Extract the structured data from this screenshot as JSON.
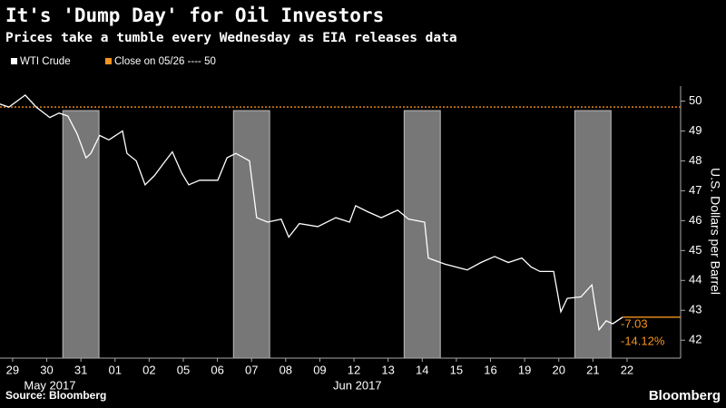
{
  "chart_data": {
    "type": "line",
    "title": "It's 'Dump Day' for Oil Investors",
    "subtitle": "Prices take a tumble every Wednesday as EIA releases data",
    "x": [
      -0.37,
      -0.11,
      0.37,
      0.69,
      1.09,
      1.36,
      1.62,
      1.89,
      2.15,
      2.29,
      2.55,
      2.82,
      3.22,
      3.35,
      3.62,
      3.88,
      4.15,
      4.41,
      4.68,
      4.95,
      5.16,
      5.48,
      6.01,
      6.28,
      6.54,
      6.94,
      7.15,
      7.47,
      7.87,
      8.09,
      8.4,
      8.94,
      9.47,
      9.87,
      10.05,
      10.4,
      10.8,
      11.28,
      11.6,
      12.07,
      12.18,
      12.66,
      13.32,
      13.72,
      14.12,
      14.52,
      14.92,
      15.19,
      15.45,
      15.85,
      16.06,
      16.25,
      16.65,
      16.97,
      17.05,
      17.18,
      17.39,
      17.58,
      17.87
    ],
    "series": [
      {
        "name": "WTI Crude",
        "color": "#ffffff",
        "values": [
          49.9,
          49.8,
          50.2,
          49.8,
          49.45,
          49.6,
          49.5,
          48.9,
          48.1,
          48.25,
          48.85,
          48.7,
          49.0,
          48.25,
          48.0,
          47.2,
          47.5,
          47.9,
          48.3,
          47.6,
          47.2,
          47.35,
          47.35,
          48.1,
          48.25,
          48.0,
          46.1,
          45.95,
          46.05,
          45.45,
          45.9,
          45.8,
          46.1,
          45.95,
          46.5,
          46.3,
          46.1,
          46.35,
          46.05,
          45.95,
          44.75,
          44.55,
          44.35,
          44.6,
          44.8,
          44.6,
          44.75,
          44.45,
          44.3,
          44.3,
          42.95,
          43.4,
          43.45,
          43.85,
          43.25,
          42.35,
          42.65,
          42.55,
          42.77
        ]
      }
    ],
    "reference": {
      "label": "Close on 05/26 ---- 50",
      "value": 49.8,
      "color": "#f7931e"
    },
    "annotations": [
      "-7.03",
      "-14.12%"
    ],
    "xlim": [
      -0.37,
      19.57
    ],
    "xticks": [
      {
        "value": 0,
        "label": "29"
      },
      {
        "value": 1,
        "label": "30"
      },
      {
        "value": 2,
        "label": "31"
      },
      {
        "value": 3,
        "label": "01"
      },
      {
        "value": 4,
        "label": "02"
      },
      {
        "value": 5,
        "label": "05"
      },
      {
        "value": 6,
        "label": "06"
      },
      {
        "value": 7,
        "label": "07"
      },
      {
        "value": 8,
        "label": "08"
      },
      {
        "value": 9,
        "label": "09"
      },
      {
        "value": 10,
        "label": "12"
      },
      {
        "value": 11,
        "label": "13"
      },
      {
        "value": 12,
        "label": "14"
      },
      {
        "value": 13,
        "label": "15"
      },
      {
        "value": 14,
        "label": "16"
      },
      {
        "value": 15,
        "label": "19"
      },
      {
        "value": 16,
        "label": "20"
      },
      {
        "value": 17,
        "label": "21"
      },
      {
        "value": 18,
        "label": "22"
      }
    ],
    "month_ticks": [
      {
        "value": 1.09,
        "label": "May 2017"
      },
      {
        "value": 10.1,
        "label": "Jun 2017"
      }
    ],
    "highlight_indices": [
      2,
      7,
      12,
      17
    ],
    "ylim": [
      41.4,
      50.5
    ],
    "yticks": [
      42,
      43,
      44,
      45,
      46,
      47,
      48,
      49,
      50
    ],
    "y_label": "U.S. Dollars per Barrel",
    "source": "Source: Bloomberg",
    "brand": "Bloomberg"
  }
}
